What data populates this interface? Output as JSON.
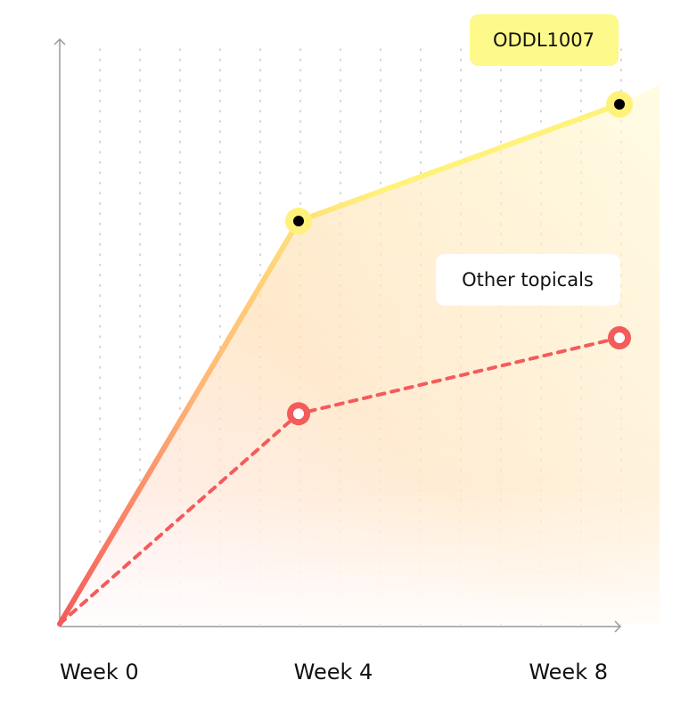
{
  "chart_data": {
    "type": "line",
    "categories": [
      "Week 0",
      "Week 4",
      "Week 8"
    ],
    "ylim": [
      0,
      100
    ],
    "series": [
      {
        "name": "ODDL1007",
        "color": "#fff27a",
        "values": [
          0,
          69,
          89
        ]
      },
      {
        "name": "Other topicals",
        "color": "#f45b5b",
        "values": [
          0,
          36,
          49
        ]
      }
    ]
  }
}
